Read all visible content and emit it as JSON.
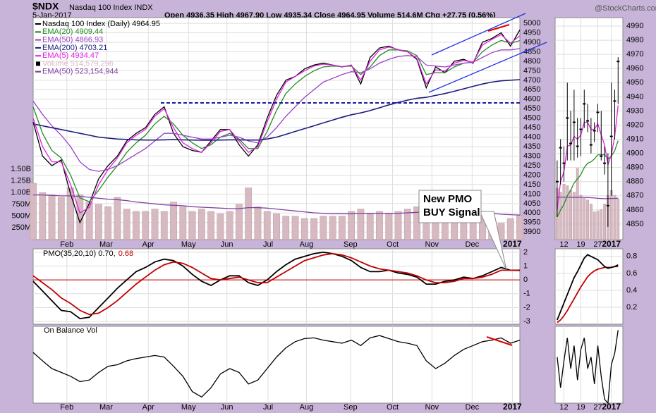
{
  "header": {
    "symbol": "$NDX",
    "name": "Nasdaq 100 Index INDX",
    "date": "5-Jan-2017",
    "quote": "Open 4936.35 High 4967.90 Low 4935.34 Close 4964.95 Volume 514.6M Chg +27.75 (0.56%)",
    "watermark": "@StockCharts.com"
  },
  "chart_data": [
    {
      "type": "line",
      "legend": true,
      "grid": true,
      "annotation": [
        "New PMO",
        "BUY Signal"
      ],
      "xlim": [
        0,
        52
      ],
      "xticks": [
        {
          "value": 3.6,
          "label": "Feb"
        },
        {
          "value": 7.8,
          "label": "Mar"
        },
        {
          "value": 12.3,
          "label": "Apr"
        },
        {
          "value": 16.6,
          "label": "May"
        },
        {
          "value": 20.7,
          "label": "Jun"
        },
        {
          "value": 25.1,
          "label": "Jul"
        },
        {
          "value": 29.2,
          "label": "Aug"
        },
        {
          "value": 33.9,
          "label": "Sep"
        },
        {
          "value": 38.4,
          "label": "Oct"
        },
        {
          "value": 42.6,
          "label": "Nov"
        },
        {
          "value": 46.9,
          "label": "Dec"
        },
        {
          "value": 51.2,
          "label": "2017"
        }
      ],
      "ylim": [
        3860,
        5030
      ],
      "yticks": [
        3900,
        3950,
        4000,
        4050,
        4100,
        4150,
        4200,
        4250,
        4300,
        4350,
        4400,
        4450,
        4500,
        4550,
        4600,
        4650,
        4700,
        4750,
        4800,
        4850,
        4900,
        4950,
        5000
      ],
      "y2lim": [
        0,
        4720000000
      ],
      "y2ticks": [
        {
          "value": 250000000,
          "label": "250M"
        },
        {
          "value": 500000000,
          "label": "500M"
        },
        {
          "value": 750000000,
          "label": "750M"
        },
        {
          "value": 1000000000,
          "label": "1.00B"
        },
        {
          "value": 1250000000,
          "label": "1.25B"
        },
        {
          "value": 1500000000,
          "label": "1.50B"
        }
      ],
      "series": [
        {
          "name": "Nasdaq 100 Index (Daily) 4964.95",
          "color": "#000000",
          "values": [
            4480,
            4300,
            4250,
            4280,
            4100,
            3950,
            4050,
            4180,
            4250,
            4300,
            4380,
            4420,
            4450,
            4520,
            4560,
            4420,
            4350,
            4330,
            4320,
            4380,
            4440,
            4440,
            4360,
            4300,
            4360,
            4500,
            4620,
            4700,
            4720,
            4760,
            4780,
            4790,
            4780,
            4770,
            4780,
            4680,
            4820,
            4870,
            4880,
            4860,
            4850,
            4810,
            4660,
            4770,
            4740,
            4800,
            4810,
            4790,
            4900,
            4920,
            4950,
            4880,
            4965
          ]
        },
        {
          "name": "EMA(20) 4909.44",
          "color": "#228b22",
          "values": [
            4560,
            4420,
            4330,
            4290,
            4200,
            4080,
            4060,
            4120,
            4190,
            4250,
            4320,
            4370,
            4410,
            4470,
            4510,
            4470,
            4410,
            4370,
            4340,
            4360,
            4400,
            4420,
            4390,
            4340,
            4340,
            4430,
            4540,
            4630,
            4680,
            4720,
            4750,
            4770,
            4775,
            4772,
            4775,
            4730,
            4770,
            4830,
            4860,
            4860,
            4855,
            4830,
            4730,
            4740,
            4740,
            4770,
            4790,
            4795,
            4850,
            4885,
            4910,
            4895,
            4909
          ]
        },
        {
          "name": "EMA(50) 4866.93",
          "color": "#9a40c8",
          "values": [
            4590,
            4520,
            4460,
            4410,
            4350,
            4270,
            4230,
            4220,
            4230,
            4250,
            4280,
            4310,
            4340,
            4380,
            4420,
            4420,
            4410,
            4400,
            4390,
            4390,
            4400,
            4410,
            4400,
            4380,
            4370,
            4400,
            4450,
            4510,
            4560,
            4610,
            4650,
            4690,
            4710,
            4730,
            4745,
            4740,
            4760,
            4790,
            4810,
            4825,
            4830,
            4825,
            4780,
            4775,
            4770,
            4780,
            4790,
            4795,
            4820,
            4845,
            4860,
            4860,
            4867
          ]
        },
        {
          "name": "EMA(200) 4703.21",
          "color": "#1c1c7c",
          "values": [
            4470,
            4460,
            4450,
            4440,
            4430,
            4420,
            4410,
            4400,
            4395,
            4390,
            4388,
            4386,
            4385,
            4385,
            4386,
            4387,
            4386,
            4385,
            4384,
            4384,
            4385,
            4386,
            4386,
            4385,
            4385,
            4390,
            4400,
            4415,
            4430,
            4445,
            4460,
            4475,
            4490,
            4505,
            4518,
            4528,
            4540,
            4555,
            4570,
            4583,
            4595,
            4605,
            4610,
            4620,
            4630,
            4642,
            4655,
            4668,
            4680,
            4690,
            4697,
            4700,
            4703
          ]
        },
        {
          "name": "EMA(5) 4934.47",
          "color": "#e020e0",
          "values": [
            4500,
            4350,
            4270,
            4270,
            4150,
            4000,
            4030,
            4150,
            4230,
            4290,
            4370,
            4410,
            4440,
            4510,
            4550,
            4450,
            4370,
            4340,
            4320,
            4370,
            4430,
            4440,
            4380,
            4320,
            4350,
            4480,
            4600,
            4690,
            4720,
            4750,
            4775,
            4785,
            4780,
            4772,
            4778,
            4700,
            4800,
            4860,
            4875,
            4862,
            4850,
            4815,
            4680,
            4755,
            4748,
            4790,
            4805,
            4795,
            4885,
            4915,
            4940,
            4895,
            4934
          ]
        },
        {
          "name": "Volume 514,579,296",
          "color": "#d7b9c1",
          "type": "bar",
          "axis": "y2",
          "values": [
            1200000000,
            1000000000,
            950000000,
            900000000,
            1100000000,
            950000000,
            800000000,
            750000000,
            700000000,
            900000000,
            650000000,
            600000000,
            600000000,
            650000000,
            600000000,
            800000000,
            700000000,
            600000000,
            650000000,
            600000000,
            550000000,
            600000000,
            750000000,
            1100000000,
            700000000,
            600000000,
            550000000,
            500000000,
            500000000,
            450000000,
            450000000,
            500000000,
            500000000,
            500000000,
            600000000,
            650000000,
            550000000,
            600000000,
            550000000,
            600000000,
            650000000,
            700000000,
            750000000,
            800000000,
            700000000,
            650000000,
            600000000,
            550000000,
            500000000,
            450000000,
            350000000,
            450000000,
            514579296
          ]
        },
        {
          "name": "EMA(50) 523,154,944",
          "color": "#8040a0",
          "axis": "y2",
          "values": [
            950000000,
            950000000,
            940000000,
            930000000,
            930000000,
            920000000,
            900000000,
            880000000,
            860000000,
            850000000,
            830000000,
            800000000,
            780000000,
            760000000,
            740000000,
            730000000,
            720000000,
            700000000,
            690000000,
            680000000,
            670000000,
            660000000,
            660000000,
            680000000,
            680000000,
            670000000,
            650000000,
            630000000,
            610000000,
            590000000,
            570000000,
            560000000,
            550000000,
            550000000,
            550000000,
            560000000,
            560000000,
            560000000,
            560000000,
            560000000,
            570000000,
            580000000,
            600000000,
            610000000,
            620000000,
            620000000,
            610000000,
            600000000,
            580000000,
            560000000,
            540000000,
            530000000,
            523154944
          ]
        }
      ]
    },
    {
      "type": "line",
      "grid": true,
      "zero_line": true,
      "zero_line_color": "#c00000",
      "ylim": [
        -3.2,
        2.25
      ],
      "yticks": [
        2,
        1,
        0,
        -1,
        -2,
        -3
      ],
      "series": [
        {
          "name": "PMO(35,20,10) 0.70,",
          "color": "#000000",
          "values": [
            -0.1,
            -0.8,
            -1.5,
            -2.2,
            -2.3,
            -2.8,
            -2.7,
            -2.0,
            -1.3,
            -0.6,
            0.0,
            0.6,
            0.9,
            1.3,
            1.5,
            1.4,
            1.0,
            0.4,
            -0.1,
            -0.4,
            0.0,
            0.3,
            0.3,
            -0.2,
            -0.4,
            0.0,
            0.6,
            1.1,
            1.5,
            1.7,
            1.9,
            2.0,
            1.9,
            1.7,
            1.4,
            0.9,
            0.6,
            0.6,
            0.7,
            0.5,
            0.4,
            0.2,
            -0.3,
            -0.3,
            -0.1,
            0.0,
            0.2,
            0.1,
            0.3,
            0.6,
            0.9,
            0.7,
            0.7
          ]
        },
        {
          "name": "0.68",
          "color": "#c00000",
          "values": [
            0.3,
            -0.2,
            -0.7,
            -1.3,
            -1.7,
            -2.2,
            -2.5,
            -2.4,
            -2.0,
            -1.5,
            -0.9,
            -0.3,
            0.2,
            0.7,
            1.1,
            1.3,
            1.2,
            0.9,
            0.5,
            0.1,
            0.0,
            0.1,
            0.2,
            0.0,
            -0.2,
            -0.2,
            0.2,
            0.6,
            1.0,
            1.4,
            1.6,
            1.8,
            1.9,
            1.8,
            1.6,
            1.3,
            1.0,
            0.8,
            0.7,
            0.6,
            0.5,
            0.3,
            0.0,
            -0.2,
            -0.2,
            -0.1,
            0.1,
            0.1,
            0.2,
            0.4,
            0.7,
            0.7,
            0.68
          ]
        }
      ]
    },
    {
      "type": "line",
      "grid": true,
      "title": "On Balance Vol",
      "ylim": [
        0,
        100
      ],
      "series": [
        {
          "color": "#000000",
          "values": [
            66,
            55,
            45,
            40,
            35,
            28,
            30,
            40,
            48,
            50,
            55,
            58,
            60,
            62,
            60,
            48,
            35,
            15,
            8,
            20,
            38,
            45,
            40,
            25,
            30,
            45,
            60,
            72,
            80,
            84,
            85,
            82,
            80,
            78,
            82,
            75,
            85,
            88,
            84,
            80,
            78,
            75,
            55,
            45,
            52,
            62,
            70,
            75,
            80,
            82,
            85,
            78,
            82
          ]
        }
      ]
    },
    {
      "type": "line",
      "grid": true,
      "xlim": [
        -0.6,
        19.4
      ],
      "xticks": [
        {
          "value": 2,
          "label": "12"
        },
        {
          "value": 7,
          "label": "19"
        },
        {
          "value": 12,
          "label": "27"
        },
        {
          "value": 16,
          "label": "2017"
        }
      ],
      "ylim": [
        4839,
        4996
      ],
      "yticks": [
        4850,
        4860,
        4870,
        4880,
        4890,
        4900,
        4910,
        4920,
        4930,
        4940,
        4950,
        4960,
        4970,
        4980,
        4990
      ],
      "y2lim": [
        0,
        2800000000
      ],
      "close": [
        4880,
        4904,
        4893,
        4925,
        4907,
        4922,
        4905,
        4917,
        4935,
        4923,
        4906,
        4916,
        4929,
        4898,
        4893,
        4863,
        4912,
        4937,
        4965
      ],
      "high": [
        4895,
        4910,
        4905,
        4950,
        4930,
        4945,
        4925,
        4925,
        4945,
        4935,
        4925,
        4922,
        4935,
        4930,
        4905,
        4900,
        4950,
        4945,
        4968
      ],
      "low": [
        4855,
        4878,
        4880,
        4895,
        4895,
        4895,
        4897,
        4898,
        4918,
        4915,
        4900,
        4908,
        4915,
        4895,
        4885,
        4848,
        4870,
        4910,
        4935
      ],
      "series": [
        {
          "color": "#d7b9c1",
          "type": "bar",
          "axis": "y2",
          "values": [
            650000000,
            600000000,
            700000000,
            680000000,
            620000000,
            600000000,
            900000000,
            560000000,
            520000000,
            500000000,
            450000000,
            350000000,
            360000000,
            380000000,
            450000000,
            560000000,
            620000000,
            560000000,
            515000000
          ]
        },
        {
          "color": "#8040a0",
          "axis": "y2",
          "values": [
            535000000,
            534000000,
            534000000,
            534000000,
            533000000,
            532000000,
            533000000,
            533000000,
            532000000,
            531000000,
            529000000,
            525000000,
            521000000,
            518000000,
            516000000,
            517000000,
            519000000,
            520000000,
            523000000
          ]
        },
        {
          "color": "#228b22",
          "values": [
            4855,
            4860,
            4864,
            4870,
            4874,
            4879,
            4882,
            4885,
            4890,
            4893,
            4894,
            4896,
            4899,
            4899,
            4899,
            4896,
            4898,
            4902,
            4909
          ]
        },
        {
          "color": "#e020e0",
          "values": [
            4860,
            4880,
            4887,
            4905,
            4906,
            4912,
            4910,
            4913,
            4922,
            4922,
            4917,
            4917,
            4921,
            4913,
            4906,
            4892,
            4899,
            4912,
            4934
          ]
        }
      ]
    },
    {
      "type": "line",
      "grid": true,
      "ylim": [
        0.0,
        0.89
      ],
      "yticks": [
        0.2,
        0.4,
        0.6,
        0.8
      ],
      "series": [
        {
          "color": "#c00000",
          "values": [
            0.02,
            0.05,
            0.1,
            0.16,
            0.23,
            0.3,
            0.37,
            0.44,
            0.5,
            0.56,
            0.6,
            0.63,
            0.65,
            0.66,
            0.67,
            0.67,
            0.67,
            0.68,
            0.68
          ]
        },
        {
          "color": "#000000",
          "values": [
            0.05,
            0.15,
            0.25,
            0.35,
            0.45,
            0.55,
            0.62,
            0.7,
            0.78,
            0.82,
            0.8,
            0.78,
            0.76,
            0.72,
            0.68,
            0.66,
            0.67,
            0.68,
            0.7
          ]
        }
      ]
    },
    {
      "type": "line",
      "grid": true,
      "ylim": [
        0,
        100
      ],
      "series": [
        {
          "color": "#000000",
          "values": [
            60,
            20,
            55,
            85,
            45,
            75,
            30,
            70,
            85,
            45,
            60,
            25,
            75,
            35,
            5,
            0,
            50,
            65,
            95
          ]
        }
      ]
    }
  ]
}
